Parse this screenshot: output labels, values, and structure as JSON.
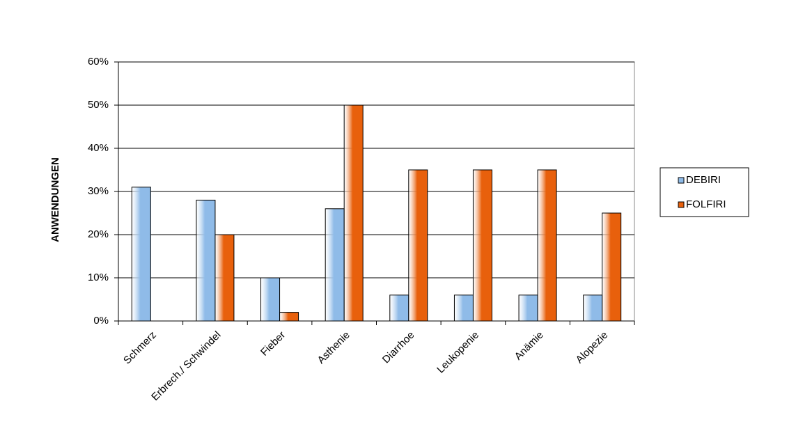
{
  "chart_data": {
    "type": "bar",
    "y_label": "ANWENDUNGEN",
    "categories": [
      "Schmerz",
      "Erbrech./ Schwindel",
      "Fieber",
      "Asthenie",
      "Diarrhoe",
      "Leukopenie",
      "Anämie",
      "Alopezie"
    ],
    "series": [
      {
        "name": "DEBIRI",
        "color": "#8fbbe8",
        "values": [
          31,
          28,
          10,
          26,
          6,
          6,
          6,
          6
        ]
      },
      {
        "name": "FOLFIRI",
        "color": "#e8600c",
        "values": [
          null,
          20,
          2,
          50,
          35,
          35,
          35,
          25
        ]
      }
    ],
    "ylim": [
      0,
      60
    ],
    "yticks": [
      {
        "value": 0,
        "label": "0%"
      },
      {
        "value": 10,
        "label": "10%"
      },
      {
        "value": 20,
        "label": "20%"
      },
      {
        "value": 30,
        "label": "30%"
      },
      {
        "value": 40,
        "label": "40%"
      },
      {
        "value": 50,
        "label": "50%"
      },
      {
        "value": 60,
        "label": "60%"
      }
    ],
    "grid": true,
    "legend": "right"
  }
}
